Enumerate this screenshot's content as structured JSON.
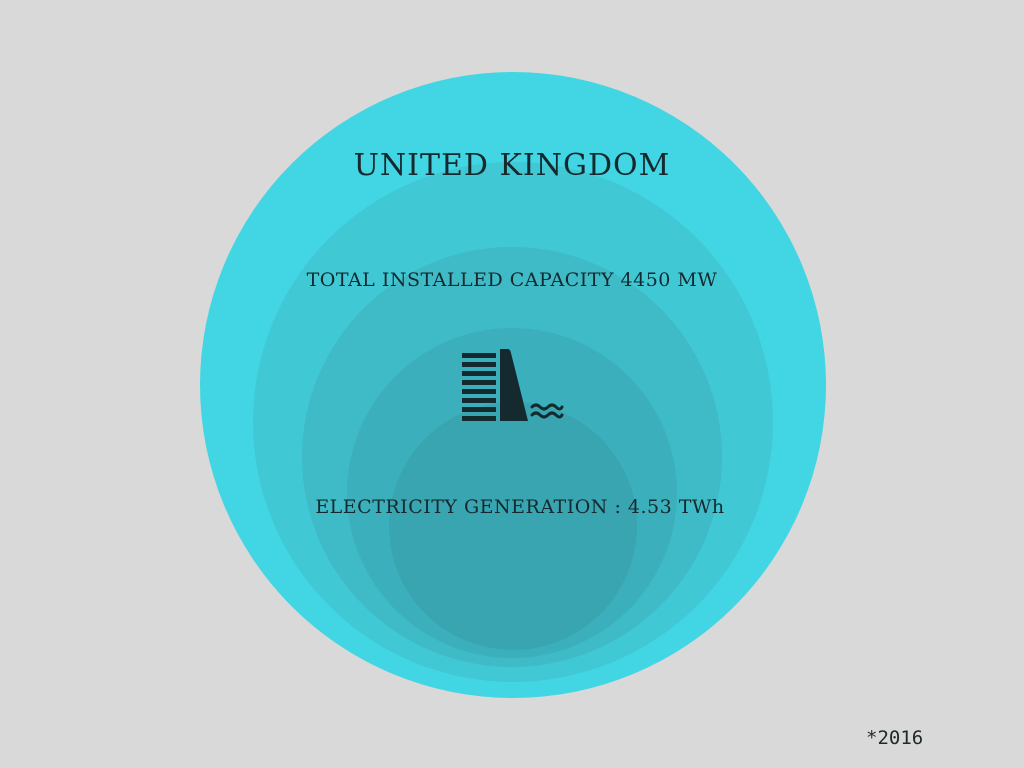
{
  "country": "UNITED KINGDOM",
  "capacity_text": "TOTAL INSTALLED CAPACITY  4450 MW",
  "generation_text": "ELECTRICITY GENERATION : 4.53 TWh",
  "footnote": "*2016",
  "icon": "hydro-dam-icon",
  "colors": {
    "background": "#d9d9d9",
    "circle_outer": "#42d6e4",
    "circle_2": "#40c8d5",
    "circle_3": "#3ebbc7",
    "circle_4": "#3bb0bc",
    "circle_inner": "#38a5b1",
    "text": "#15292e"
  }
}
